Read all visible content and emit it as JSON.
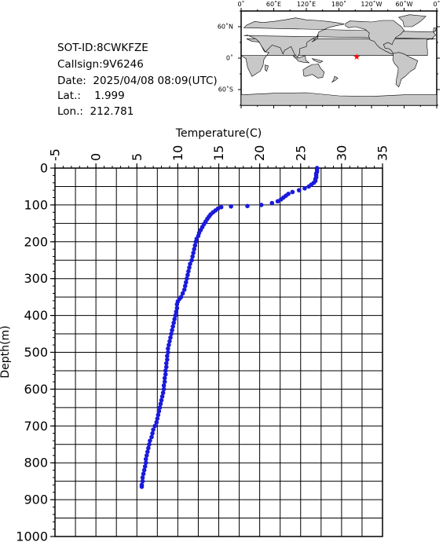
{
  "info": {
    "sot_id": "SOT-ID:8CWKFZE",
    "callsign": "Callsign:9V6246",
    "date": "Date:  2025/04/08 08:09(UTC)",
    "lat": "Lat.:    1.999",
    "lon": "Lon.:  212.781"
  },
  "map": {
    "lon_labels": [
      "0˚",
      "60˚E",
      "120˚E",
      "180˚",
      "120˚W",
      "60˚W",
      "0˚"
    ],
    "lat_labels": [
      "60˚N",
      "0˚",
      "60˚S"
    ],
    "marker": {
      "lat": 1.999,
      "lon": 212.781,
      "symbol": "★",
      "color": "#ff0000"
    },
    "land_color": "#c8c8c8",
    "ocean_color": "#ffffff"
  },
  "chart_data": {
    "type": "scatter",
    "title": "",
    "xlabel": "Temperature(C)",
    "ylabel": "Depth(m)",
    "xlim": [
      -5,
      35
    ],
    "ylim": [
      1000,
      0
    ],
    "x_axis_position": "top",
    "y_inverted": true,
    "grid": true,
    "marker_color": "#1a1adc",
    "x_ticks": [
      -5,
      0,
      5,
      10,
      15,
      20,
      25,
      30,
      35
    ],
    "y_ticks": [
      0,
      100,
      200,
      300,
      400,
      500,
      600,
      700,
      800,
      900,
      1000
    ],
    "series": [
      {
        "points": [
          [
            27.0,
            0
          ],
          [
            27.0,
            5
          ],
          [
            27.0,
            10
          ],
          [
            26.9,
            15
          ],
          [
            26.9,
            20
          ],
          [
            26.9,
            25
          ],
          [
            26.8,
            30
          ],
          [
            26.8,
            35
          ],
          [
            26.6,
            40
          ],
          [
            26.3,
            45
          ],
          [
            26.0,
            50
          ],
          [
            25.5,
            55
          ],
          [
            24.8,
            60
          ],
          [
            24.0,
            65
          ],
          [
            23.5,
            70
          ],
          [
            23.2,
            75
          ],
          [
            22.9,
            80
          ],
          [
            22.6,
            85
          ],
          [
            22.2,
            90
          ],
          [
            21.5,
            95
          ],
          [
            20.2,
            100
          ],
          [
            18.5,
            103
          ],
          [
            16.5,
            104
          ],
          [
            15.3,
            106
          ],
          [
            14.9,
            110
          ],
          [
            14.6,
            115
          ],
          [
            14.3,
            120
          ],
          [
            14.0,
            126
          ],
          [
            13.8,
            132
          ],
          [
            13.6,
            138
          ],
          [
            13.4,
            145
          ],
          [
            13.2,
            152
          ],
          [
            13.0,
            160
          ],
          [
            12.8,
            168
          ],
          [
            12.6,
            176
          ],
          [
            12.5,
            184
          ],
          [
            12.3,
            192
          ],
          [
            12.2,
            200
          ],
          [
            12.1,
            210
          ],
          [
            12.0,
            220
          ],
          [
            11.9,
            230
          ],
          [
            11.8,
            240
          ],
          [
            11.7,
            250
          ],
          [
            11.5,
            260
          ],
          [
            11.4,
            270
          ],
          [
            11.3,
            280
          ],
          [
            11.2,
            290
          ],
          [
            11.1,
            300
          ],
          [
            11.0,
            310
          ],
          [
            10.9,
            320
          ],
          [
            10.8,
            330
          ],
          [
            10.6,
            340
          ],
          [
            10.4,
            350
          ],
          [
            10.2,
            355
          ],
          [
            10.0,
            362
          ],
          [
            9.9,
            370
          ],
          [
            9.9,
            380
          ],
          [
            9.8,
            390
          ],
          [
            9.7,
            400
          ],
          [
            9.6,
            410
          ],
          [
            9.5,
            420
          ],
          [
            9.4,
            430
          ],
          [
            9.3,
            440
          ],
          [
            9.2,
            450
          ],
          [
            9.1,
            460
          ],
          [
            9.0,
            470
          ],
          [
            8.9,
            480
          ],
          [
            8.8,
            490
          ],
          [
            8.8,
            500
          ],
          [
            8.7,
            510
          ],
          [
            8.7,
            520
          ],
          [
            8.6,
            530
          ],
          [
            8.6,
            540
          ],
          [
            8.5,
            550
          ],
          [
            8.5,
            560
          ],
          [
            8.4,
            570
          ],
          [
            8.4,
            580
          ],
          [
            8.3,
            590
          ],
          [
            8.3,
            600
          ],
          [
            8.2,
            610
          ],
          [
            8.1,
            620
          ],
          [
            8.0,
            630
          ],
          [
            7.9,
            640
          ],
          [
            7.8,
            650
          ],
          [
            7.7,
            660
          ],
          [
            7.6,
            670
          ],
          [
            7.5,
            680
          ],
          [
            7.4,
            690
          ],
          [
            7.2,
            700
          ],
          [
            7.0,
            710
          ],
          [
            6.9,
            720
          ],
          [
            6.8,
            730
          ],
          [
            6.6,
            740
          ],
          [
            6.5,
            750
          ],
          [
            6.4,
            760
          ],
          [
            6.3,
            770
          ],
          [
            6.2,
            780
          ],
          [
            6.1,
            790
          ],
          [
            6.1,
            800
          ],
          [
            6.0,
            810
          ],
          [
            5.9,
            820
          ],
          [
            5.8,
            830
          ],
          [
            5.7,
            840
          ],
          [
            5.7,
            850
          ],
          [
            5.6,
            860
          ],
          [
            5.6,
            865
          ]
        ]
      }
    ]
  }
}
